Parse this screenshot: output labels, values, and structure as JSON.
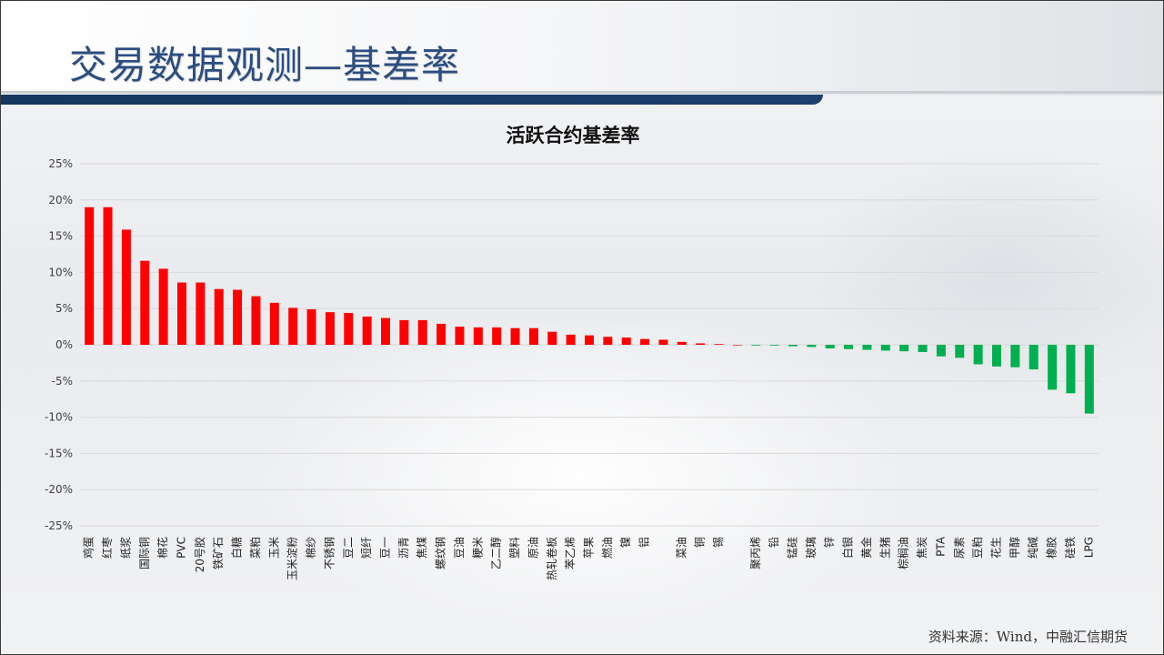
{
  "page": {
    "title": "交易数据观测—基差率",
    "source": "资料来源：Wind，中融汇信期货"
  },
  "colors": {
    "positive": "#ff0000",
    "negative": "#00b050",
    "grid": "#d9d9d9",
    "title": "#2b4d80"
  },
  "chart_data": {
    "type": "bar",
    "title": "活跃合约基差率",
    "xlabel": "",
    "ylabel": "",
    "ylim": [
      -0.25,
      0.25
    ],
    "yticks": [
      0.25,
      0.2,
      0.15,
      0.1,
      0.05,
      0.0,
      -0.05,
      -0.1,
      -0.15,
      -0.2,
      -0.25
    ],
    "ytick_labels": [
      "25%",
      "20%",
      "15%",
      "10%",
      "5%",
      "0%",
      "-5%",
      "-10%",
      "-15%",
      "-20%",
      "-25%"
    ],
    "grid": true,
    "categories": [
      "鸡蛋",
      "红枣",
      "纸浆",
      "国际铜",
      "棉花",
      "PVC",
      "20号胶",
      "铁矿石",
      "白糖",
      "菜粕",
      "玉米",
      "玉米淀粉",
      "棉纱",
      "不锈钢",
      "豆二",
      "短纤",
      "豆一",
      "沥青",
      "焦煤",
      "螺纹钢",
      "豆油",
      "粳米",
      "乙二醇",
      "塑料",
      "原油",
      "热轧卷板",
      "苯乙烯",
      "苹果",
      "燃油",
      "镍",
      "铝",
      "",
      "菜油",
      "铜",
      "锡",
      "",
      "聚丙烯",
      "铅",
      "锰硅",
      "玻璃",
      "锌",
      "白银",
      "黄金",
      "生猪",
      "棕榈油",
      "焦炭",
      "PTA",
      "尿素",
      "豆粕",
      "花生",
      "甲醇",
      "纯碱",
      "橡胶",
      "硅铁",
      "LPG"
    ],
    "values": [
      0.19,
      0.19,
      0.159,
      0.116,
      0.105,
      0.086,
      0.086,
      0.077,
      0.076,
      0.067,
      0.058,
      0.051,
      0.049,
      0.045,
      0.044,
      0.039,
      0.037,
      0.034,
      0.034,
      0.029,
      0.025,
      0.024,
      0.024,
      0.023,
      0.023,
      0.018,
      0.014,
      0.013,
      0.011,
      0.01,
      0.008,
      0.007,
      0.004,
      0.002,
      0.001,
      0.0,
      -0.001,
      -0.001,
      -0.002,
      -0.003,
      -0.005,
      -0.006,
      -0.007,
      -0.008,
      -0.009,
      -0.01,
      -0.016,
      -0.018,
      -0.027,
      -0.03,
      -0.031,
      -0.034,
      -0.062,
      -0.067,
      -0.095
    ]
  }
}
